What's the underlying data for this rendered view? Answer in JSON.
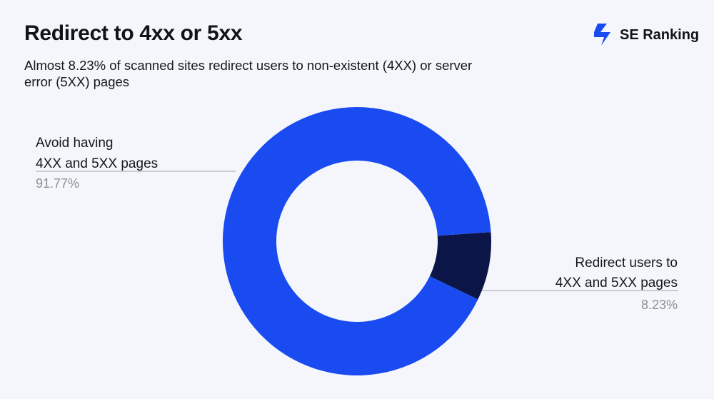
{
  "header": {
    "title": "Redirect to 4xx or 5xx",
    "subtitle": "Almost 8.23% of scanned sites redirect users to non-existent (4XX) or server error (5XX) pages"
  },
  "brand": {
    "name": "SE Ranking",
    "icon": "se-ranking-logo-icon",
    "color": "#1a4bf0"
  },
  "chart_data": {
    "type": "pie",
    "variant": "donut",
    "slices": [
      {
        "label": "Avoid having\n4XX and 5XX pages",
        "label_line1": "Avoid having",
        "label_line2": "4XX and 5XX pages",
        "value": 91.77,
        "display": "91.77%",
        "color": "#1a4bf0"
      },
      {
        "label": "Redirect users to\n4XX and 5XX pages",
        "label_line1": "Redirect users to",
        "label_line2": "4XX and 5XX pages",
        "value": 8.23,
        "display": "8.23%",
        "color": "#0b1547"
      }
    ],
    "legend": "none"
  }
}
